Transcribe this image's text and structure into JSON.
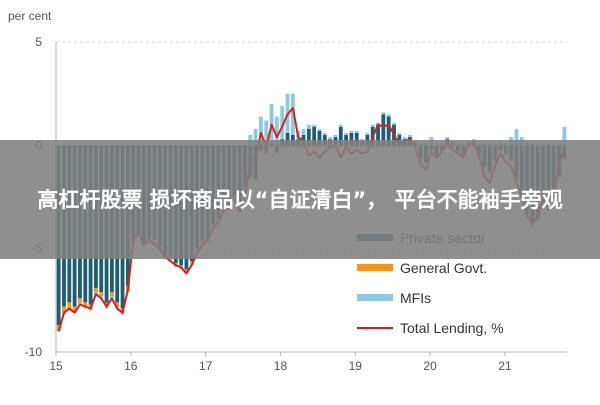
{
  "chart_data": {
    "type": "bar",
    "ylabel": "per cent",
    "ylim": [
      -10,
      5
    ],
    "yticks": [
      "5",
      "0",
      "-5",
      "-10"
    ],
    "ytick_values": [
      5,
      0,
      -5,
      -10
    ],
    "xticks": [
      "15",
      "16",
      "17",
      "18",
      "19",
      "20",
      "21"
    ],
    "xtick_years": [
      2015,
      2016,
      2017,
      2018,
      2019,
      2020,
      2021
    ],
    "x_start_year": 2015,
    "x_end_year": 2021.83,
    "grid": "horizontal-dashed",
    "legend_position": "bottom-right",
    "colors": {
      "private": "#1f5d74",
      "govt": "#f7941d",
      "mfi": "#8ec9e0",
      "total": "#d42020",
      "axis": "#b7b7b7",
      "grid": "#d4d4d4",
      "text": "#555555"
    },
    "series": [
      {
        "name": "Private sector",
        "values": [
          -8.7,
          -7.8,
          -7.6,
          -7.8,
          -7.4,
          -7.6,
          -7.7,
          -6.9,
          -7.1,
          -7.6,
          -7.1,
          -7.6,
          -7.9,
          -6.8,
          -4.6,
          -4.2,
          -4.7,
          -4.5,
          -4.6,
          -4.9,
          -5.3,
          -5.4,
          -5.7,
          -5.8,
          -6.0,
          -5.6,
          -5.0,
          -4.6,
          -4.5,
          -3.8,
          -3.5,
          -3.0,
          -2.9,
          -2.4,
          -2.8,
          -2.0,
          -1.5,
          -1.6,
          -0.2,
          -0.3,
          0.1,
          -0.3,
          0.3,
          0.6,
          0.5,
          0.3,
          0.5,
          0.8,
          0.9,
          0.7,
          0.5,
          0.3,
          0.4,
          0.9,
          0.5,
          0.6,
          0.6,
          0.2,
          0.5,
          0.9,
          1.0,
          1.5,
          1.4,
          1.0,
          0.5,
          0.3,
          0.4,
          0.1,
          -0.6,
          -0.8,
          -0.2,
          -0.5,
          -0.2,
          0.3,
          0.1,
          -0.3,
          -0.4,
          0.1,
          0.2,
          -0.4,
          -1.0,
          -1.3,
          -0.7,
          -0.2,
          -0.4,
          -0.7,
          -1.6,
          -2.4,
          -3.3,
          -3.8,
          -3.5,
          -2.4,
          -3.0,
          -2.7,
          -1.5,
          -0.6
        ]
      },
      {
        "name": "General Govt.",
        "values": [
          -0.2,
          -0.3,
          -0.3,
          -0.2,
          -0.2,
          -0.2,
          -0.2,
          -0.2,
          -0.2,
          -0.2,
          -0.2,
          -0.2,
          -0.2,
          -0.2,
          -0.1,
          -0.1,
          -0.1,
          -0.1,
          -0.1,
          -0.1,
          -0.1,
          -0.1,
          -0.1,
          -0.1,
          -0.1,
          -0.1,
          -0.1,
          -0.1,
          -0.1,
          -0.1,
          -0.1,
          -0.1,
          -0.1,
          -0.1,
          -0.1,
          -0.1,
          -0.1,
          -0.1,
          -0.1,
          -0.1,
          -0.1,
          -0.1,
          -0.1,
          -0.1,
          -0.1,
          -0.1,
          -0.1,
          -0.1,
          -0.1,
          -0.1,
          -0.1,
          -0.1,
          -0.1,
          -0.1,
          -0.1,
          -0.1,
          -0.1,
          -0.1,
          -0.1,
          -0.1,
          -0.1,
          -0.1,
          -0.1,
          -0.1,
          -0.1,
          -0.1,
          -0.1,
          -0.1,
          -0.1,
          -0.1,
          -0.1,
          -0.1,
          -0.1,
          -0.1,
          -0.1,
          -0.1,
          -0.1,
          -0.1,
          -0.1,
          -0.1,
          -0.1,
          -0.1,
          -0.1,
          -0.1,
          -0.1,
          -0.1,
          -0.1,
          -0.1,
          -0.1,
          -0.1,
          -0.1,
          -0.1,
          -0.1,
          -0.1,
          -0.1,
          -0.1
        ]
      },
      {
        "name": "MFIs",
        "values": [
          -0.1,
          -0.1,
          -0.1,
          -0.1,
          -0.1,
          -0.1,
          -0.1,
          -0.1,
          -0.1,
          -0.1,
          -0.1,
          -0.1,
          -0.1,
          -0.1,
          -0.1,
          -0.1,
          -0.1,
          -0.1,
          -0.1,
          -0.1,
          -0.1,
          -0.1,
          -0.1,
          -0.1,
          -0.1,
          -0.1,
          -0.1,
          -0.1,
          -0.1,
          -0.1,
          -0.1,
          -0.1,
          -0.1,
          -0.1,
          -0.1,
          -0.1,
          0.5,
          0.8,
          1.4,
          1.2,
          1.9,
          1.4,
          1.6,
          1.9,
          2.0,
          0.4,
          0.3,
          0.2,
          0.1,
          0.1,
          0.1,
          0.1,
          0.1,
          0.1,
          0.1,
          0.1,
          0.1,
          0.1,
          0.1,
          0.1,
          0.1,
          0.1,
          0.1,
          0.1,
          0.1,
          0.1,
          0.1,
          0.1,
          0.1,
          0.1,
          0.4,
          0.1,
          0.1,
          0.1,
          0.1,
          0.1,
          0.1,
          0.1,
          0.1,
          0.1,
          0.1,
          0.1,
          0.1,
          0.2,
          0.1,
          0.4,
          0.8,
          0.4,
          0.2,
          0.1,
          0.1,
          0.1,
          0.1,
          0.1,
          0.1,
          0.9
        ]
      },
      {
        "name": "Total Lending, %",
        "values": [
          -9.0,
          -8.1,
          -7.9,
          -8.1,
          -7.7,
          -7.8,
          -7.9,
          -7.2,
          -7.4,
          -7.8,
          -7.4,
          -7.9,
          -8.1,
          -7.0,
          -4.6,
          -4.2,
          -4.8,
          -4.6,
          -4.8,
          -5.0,
          -5.4,
          -5.6,
          -5.8,
          -5.9,
          -6.2,
          -5.8,
          -5.2,
          -4.8,
          -4.6,
          -4.0,
          -3.7,
          -3.2,
          -3.0,
          -2.6,
          -3.2,
          -2.5,
          -0.8,
          -0.6,
          0.6,
          -0.1,
          1.0,
          0.4,
          0.9,
          1.5,
          1.8,
          0.4,
          0.2,
          -0.5,
          -0.3,
          -0.6,
          -0.3,
          -0.1,
          0.0,
          -0.6,
          -0.1,
          -0.4,
          -0.2,
          -0.4,
          -0.3,
          0.4,
          1.0,
          0.9,
          1.0,
          0.5,
          0.0,
          0.2,
          0.3,
          -0.1,
          -0.9,
          -1.2,
          -0.3,
          -0.6,
          -0.3,
          0.1,
          -0.2,
          -0.4,
          -0.6,
          0.0,
          0.1,
          -0.5,
          -1.5,
          -1.8,
          -1.0,
          -0.4,
          -0.8,
          -1.0,
          -1.8,
          -2.5,
          -3.4,
          -3.8,
          -3.5,
          -2.6,
          -3.1,
          -2.8,
          -0.9,
          -0.2
        ]
      }
    ]
  },
  "banner": {
    "text": "高杠杆股票 损坏商品以“自证清白”， 平台不能袖手旁观"
  }
}
